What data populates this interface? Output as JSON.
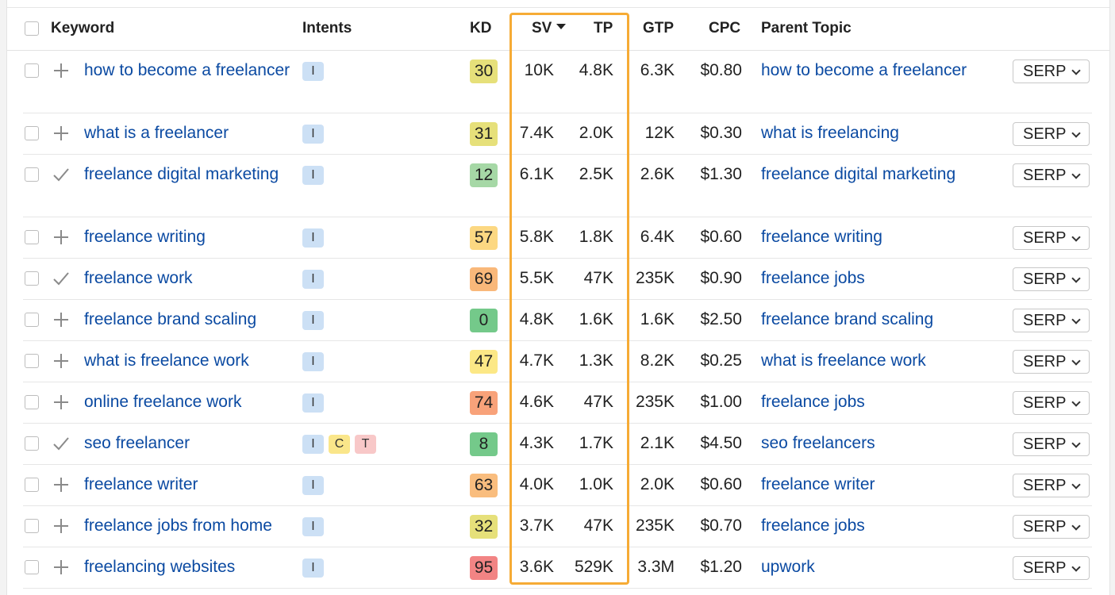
{
  "table": {
    "columns": {
      "keyword": "Keyword",
      "intents": "Intents",
      "kd": "KD",
      "sv": "SV",
      "tp": "TP",
      "gtp": "GTP",
      "cpc": "CPC",
      "parent_topic": "Parent Topic"
    },
    "sort": {
      "column": "SV",
      "direction": "descending"
    },
    "highlight_color": "#f6ab35",
    "rows": [
      {
        "action": "plus",
        "keyword": "how to become a freelancer",
        "intents": [
          "I"
        ],
        "kd": "30",
        "kd_color": "#e6e07a",
        "sv": "10K",
        "tp": "4.8K",
        "gtp": "6.3K",
        "cpc": "$0.80",
        "parent": "how to become a freelancer",
        "serp": "SERP"
      },
      {
        "action": "plus",
        "keyword": "what is a freelancer",
        "intents": [
          "I"
        ],
        "kd": "31",
        "kd_color": "#e6e07a",
        "sv": "7.4K",
        "tp": "2.0K",
        "gtp": "12K",
        "cpc": "$0.30",
        "parent": "what is freelancing",
        "serp": "SERP"
      },
      {
        "action": "check",
        "keyword": "freelance digital marketing",
        "intents": [
          "I"
        ],
        "kd": "12",
        "kd_color": "#a6d8a6",
        "sv": "6.1K",
        "tp": "2.5K",
        "gtp": "2.6K",
        "cpc": "$1.30",
        "parent": "freelance digital marketing",
        "serp": "SERP"
      },
      {
        "action": "plus",
        "keyword": "freelance writing",
        "intents": [
          "I"
        ],
        "kd": "57",
        "kd_color": "#fcd882",
        "sv": "5.8K",
        "tp": "1.8K",
        "gtp": "6.4K",
        "cpc": "$0.60",
        "parent": "freelance writing",
        "serp": "SERP"
      },
      {
        "action": "check",
        "keyword": "freelance work",
        "intents": [
          "I"
        ],
        "kd": "69",
        "kd_color": "#f9b87a",
        "sv": "5.5K",
        "tp": "47K",
        "gtp": "235K",
        "cpc": "$0.90",
        "parent": "freelance jobs",
        "serp": "SERP"
      },
      {
        "action": "plus",
        "keyword": "freelance brand scaling",
        "intents": [
          "I"
        ],
        "kd": "0",
        "kd_color": "#74c98a",
        "sv": "4.8K",
        "tp": "1.6K",
        "gtp": "1.6K",
        "cpc": "$2.50",
        "parent": "freelance brand scaling",
        "serp": "SERP"
      },
      {
        "action": "plus",
        "keyword": "what is freelance work",
        "intents": [
          "I"
        ],
        "kd": "47",
        "kd_color": "#fce886",
        "sv": "4.7K",
        "tp": "1.3K",
        "gtp": "8.2K",
        "cpc": "$0.25",
        "parent": "what is freelance work",
        "serp": "SERP"
      },
      {
        "action": "plus",
        "keyword": "online freelance work",
        "intents": [
          "I"
        ],
        "kd": "74",
        "kd_color": "#f8a27a",
        "sv": "4.6K",
        "tp": "47K",
        "gtp": "235K",
        "cpc": "$1.00",
        "parent": "freelance jobs",
        "serp": "SERP"
      },
      {
        "action": "check",
        "keyword": "seo freelancer",
        "intents": [
          "I",
          "C",
          "T"
        ],
        "kd": "8",
        "kd_color": "#74c98a",
        "sv": "4.3K",
        "tp": "1.7K",
        "gtp": "2.1K",
        "cpc": "$4.50",
        "parent": "seo freelancers",
        "serp": "SERP"
      },
      {
        "action": "plus",
        "keyword": "freelance writer",
        "intents": [
          "I"
        ],
        "kd": "63",
        "kd_color": "#f9bd7e",
        "sv": "4.0K",
        "tp": "1.0K",
        "gtp": "2.0K",
        "cpc": "$0.60",
        "parent": "freelance writer",
        "serp": "SERP"
      },
      {
        "action": "plus",
        "keyword": "freelance jobs from home",
        "intents": [
          "I"
        ],
        "kd": "32",
        "kd_color": "#e6e07a",
        "sv": "3.7K",
        "tp": "47K",
        "gtp": "235K",
        "cpc": "$0.70",
        "parent": "freelance jobs",
        "serp": "SERP"
      },
      {
        "action": "plus",
        "keyword": "freelancing websites",
        "intents": [
          "I"
        ],
        "kd": "95",
        "kd_color": "#f28484",
        "sv": "3.6K",
        "tp": "529K",
        "gtp": "3.3M",
        "cpc": "$1.20",
        "parent": "upwork",
        "serp": "SERP"
      }
    ]
  }
}
